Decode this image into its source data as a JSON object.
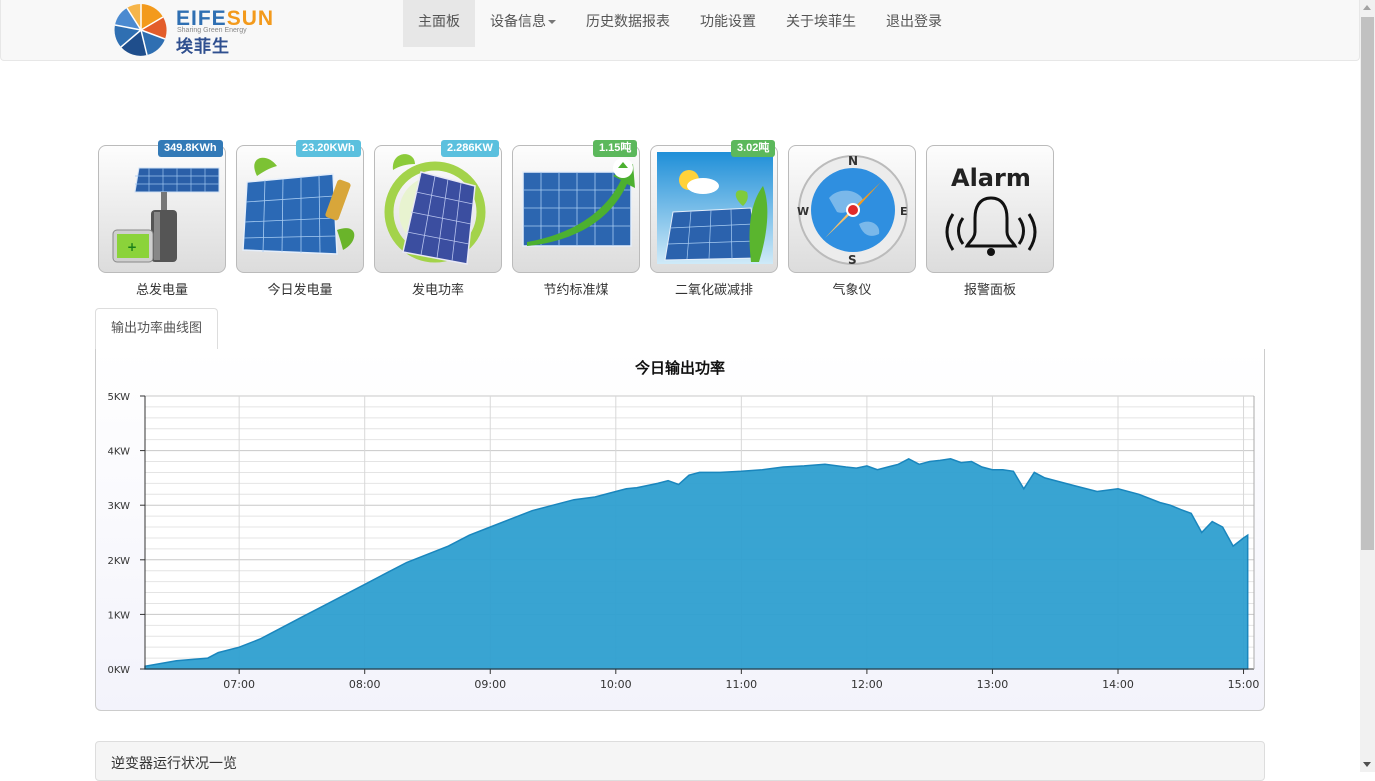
{
  "brand": {
    "name_part1": "EIFE",
    "name_part2": "SUN",
    "slogan": "Sharing Green Energy",
    "cn_name": "埃菲生"
  },
  "nav": {
    "items": [
      {
        "label": "主面板",
        "active": true
      },
      {
        "label": "设备信息",
        "dropdown": true
      },
      {
        "label": "历史数据报表"
      },
      {
        "label": "功能设置"
      },
      {
        "label": "关于埃菲生"
      },
      {
        "label": "退出登录"
      }
    ]
  },
  "tiles": [
    {
      "label": "总发电量",
      "badge": "349.8KWh",
      "badge_color": "#337ab7",
      "icon": "solar-battery-icon"
    },
    {
      "label": "今日发电量",
      "badge": "23.20KWh",
      "badge_color": "#5bc0de",
      "icon": "solar-leaf-battery-icon"
    },
    {
      "label": "发电功率",
      "badge": "2.286KW",
      "badge_color": "#5bc0de",
      "icon": "solar-panel-leaf-icon"
    },
    {
      "label": "节约标准煤",
      "badge": "1.15吨",
      "badge_color": "#5cb85c",
      "icon": "solar-recycle-icon"
    },
    {
      "label": "二氧化碳减排",
      "badge": "3.02吨",
      "badge_color": "#5cb85c",
      "icon": "solar-weather-icon"
    },
    {
      "label": "气象仪",
      "icon": "compass-icon"
    },
    {
      "label": "报警面板",
      "icon": "alarm-bell-icon",
      "icon_text": "Alarm"
    }
  ],
  "tabs": [
    {
      "label": "输出功率曲线图",
      "active": true
    }
  ],
  "chart_data": {
    "type": "area",
    "title": "今日输出功率",
    "ylim": [
      0,
      5
    ],
    "yticks": [
      "0KW",
      "1KW",
      "2KW",
      "3KW",
      "4KW",
      "5KW"
    ],
    "xlim": [
      "06:15",
      "15:05"
    ],
    "xticks": [
      "07:00",
      "08:00",
      "09:00",
      "10:00",
      "11:00",
      "12:00",
      "13:00",
      "14:00",
      "15:00"
    ],
    "grid": true,
    "color": "#2e9fd0",
    "series": [
      {
        "x": [
          "06:15",
          "06:30",
          "06:45",
          "06:50",
          "07:00",
          "07:10",
          "07:20",
          "07:30",
          "07:40",
          "07:50",
          "08:00",
          "08:10",
          "08:20",
          "08:30",
          "08:40",
          "08:50",
          "09:00",
          "09:10",
          "09:20",
          "09:30",
          "09:40",
          "09:50",
          "10:00",
          "10:05",
          "10:10",
          "10:20",
          "10:25",
          "10:30",
          "10:35",
          "10:40",
          "10:50",
          "11:00",
          "11:10",
          "11:20",
          "11:30",
          "11:40",
          "11:50",
          "11:55",
          "12:00",
          "12:05",
          "12:10",
          "12:15",
          "12:20",
          "12:25",
          "12:30",
          "12:35",
          "12:40",
          "12:45",
          "12:50",
          "12:55",
          "13:00",
          "13:05",
          "13:10",
          "13:15",
          "13:20",
          "13:25",
          "13:30",
          "13:40",
          "13:50",
          "14:00",
          "14:10",
          "14:20",
          "14:25",
          "14:30",
          "14:35",
          "14:40",
          "14:45",
          "14:50",
          "14:55",
          "15:00",
          "15:02"
        ],
        "y": [
          0.05,
          0.15,
          0.2,
          0.3,
          0.4,
          0.55,
          0.75,
          0.95,
          1.15,
          1.35,
          1.55,
          1.75,
          1.95,
          2.1,
          2.25,
          2.45,
          2.6,
          2.75,
          2.9,
          3.0,
          3.1,
          3.15,
          3.25,
          3.3,
          3.32,
          3.4,
          3.45,
          3.38,
          3.55,
          3.6,
          3.6,
          3.62,
          3.65,
          3.7,
          3.72,
          3.75,
          3.7,
          3.68,
          3.72,
          3.65,
          3.7,
          3.75,
          3.85,
          3.75,
          3.8,
          3.82,
          3.85,
          3.78,
          3.8,
          3.7,
          3.65,
          3.65,
          3.62,
          3.3,
          3.6,
          3.5,
          3.45,
          3.35,
          3.25,
          3.3,
          3.2,
          3.05,
          3.0,
          2.92,
          2.85,
          2.5,
          2.7,
          2.6,
          2.25,
          2.4,
          2.45
        ]
      }
    ]
  },
  "bottom_panel": {
    "title": "逆变器运行状况一览"
  }
}
